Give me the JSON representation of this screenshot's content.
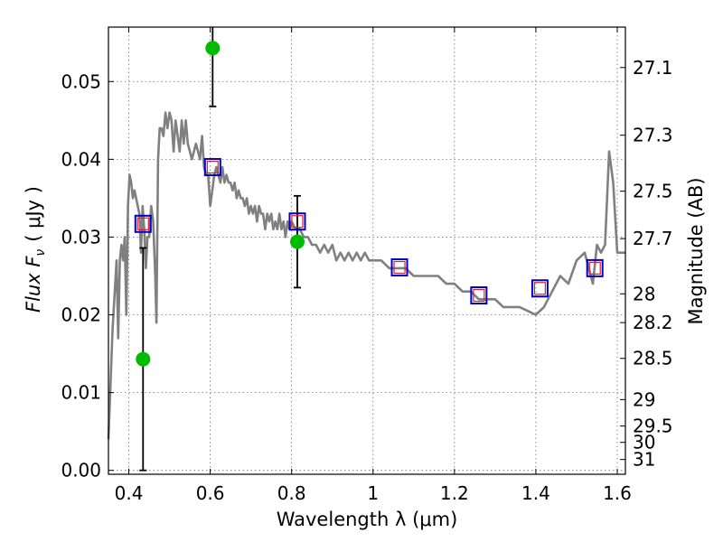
{
  "chart_data": {
    "type": "scatter",
    "xlabel": "Wavelength  λ (μm)",
    "ylabel": "Flux  F",
    "ylabel_sub": "ν",
    "ylabel_unit": "( μJy )",
    "y2label": "Magnitude (AB)",
    "xlim": [
      0.35,
      1.62
    ],
    "ylim": [
      -0.0005,
      0.057
    ],
    "grid": true,
    "x_ticks": [
      0.4,
      0.6,
      0.8,
      1.0,
      1.2,
      1.4,
      1.6
    ],
    "x_tick_labels": [
      "0.4",
      "0.6",
      "0.8",
      "1",
      "1.2",
      "1.4",
      "1.6"
    ],
    "y_ticks": [
      0.0,
      0.01,
      0.02,
      0.03,
      0.04,
      0.05
    ],
    "y_tick_labels": [
      "0.00",
      "0.01",
      "0.02",
      "0.03",
      "0.04",
      "0.05"
    ],
    "mag_ticks": [
      {
        "label": "27.1",
        "flux": 0.0518
      },
      {
        "label": "27.3",
        "flux": 0.0431
      },
      {
        "label": "27.5",
        "flux": 0.0359
      },
      {
        "label": "27.7",
        "flux": 0.0298
      },
      {
        "label": "28",
        "flux": 0.0227
      },
      {
        "label": "28.2",
        "flux": 0.019
      },
      {
        "label": "28.5",
        "flux": 0.0144
      },
      {
        "label": "29",
        "flux": 0.0091
      },
      {
        "label": "29.5",
        "flux": 0.0057
      },
      {
        "label": "30",
        "flux": 0.0036
      },
      {
        "label": "31",
        "flux": 0.0014
      }
    ],
    "colors": {
      "model": "#808080",
      "observed": "#00bb00",
      "synthetic": "#0000cc",
      "synthetic_inner": "#dd2222",
      "errorbar": "#000000"
    },
    "model_spectrum": {
      "x": [
        0.35,
        0.36,
        0.37,
        0.374,
        0.378,
        0.382,
        0.386,
        0.39,
        0.394,
        0.398,
        0.402,
        0.406,
        0.41,
        0.414,
        0.418,
        0.422,
        0.426,
        0.43,
        0.434,
        0.438,
        0.442,
        0.446,
        0.45,
        0.455,
        0.46,
        0.465,
        0.468,
        0.472,
        0.476,
        0.48,
        0.485,
        0.49,
        0.495,
        0.5,
        0.505,
        0.51,
        0.515,
        0.52,
        0.525,
        0.53,
        0.535,
        0.54,
        0.545,
        0.55,
        0.555,
        0.56,
        0.565,
        0.57,
        0.575,
        0.58,
        0.585,
        0.59,
        0.595,
        0.6,
        0.605,
        0.61,
        0.615,
        0.62,
        0.625,
        0.63,
        0.635,
        0.64,
        0.645,
        0.65,
        0.655,
        0.66,
        0.665,
        0.67,
        0.675,
        0.68,
        0.685,
        0.69,
        0.695,
        0.7,
        0.705,
        0.71,
        0.715,
        0.72,
        0.725,
        0.73,
        0.735,
        0.74,
        0.745,
        0.75,
        0.755,
        0.76,
        0.765,
        0.77,
        0.775,
        0.78,
        0.785,
        0.79,
        0.795,
        0.8,
        0.81,
        0.82,
        0.83,
        0.84,
        0.85,
        0.86,
        0.87,
        0.88,
        0.89,
        0.9,
        0.91,
        0.92,
        0.93,
        0.94,
        0.95,
        0.96,
        0.97,
        0.98,
        0.99,
        1.0,
        1.02,
        1.04,
        1.06,
        1.08,
        1.1,
        1.12,
        1.14,
        1.16,
        1.18,
        1.2,
        1.22,
        1.24,
        1.26,
        1.28,
        1.3,
        1.32,
        1.34,
        1.36,
        1.38,
        1.4,
        1.42,
        1.44,
        1.46,
        1.48,
        1.5,
        1.52,
        1.54,
        1.55,
        1.56,
        1.57,
        1.58,
        1.59,
        1.6,
        1.61,
        1.62
      ],
      "y": [
        0.004,
        0.018,
        0.027,
        0.017,
        0.027,
        0.029,
        0.027,
        0.03,
        0.02,
        0.034,
        0.038,
        0.037,
        0.035,
        0.036,
        0.035,
        0.034,
        0.033,
        0.028,
        0.034,
        0.031,
        0.026,
        0.03,
        0.03,
        0.034,
        0.032,
        0.025,
        0.019,
        0.04,
        0.044,
        0.044,
        0.043,
        0.046,
        0.044,
        0.046,
        0.045,
        0.041,
        0.045,
        0.043,
        0.041,
        0.045,
        0.042,
        0.045,
        0.042,
        0.041,
        0.04,
        0.041,
        0.042,
        0.041,
        0.04,
        0.043,
        0.039,
        0.038,
        0.038,
        0.034,
        0.036,
        0.038,
        0.039,
        0.038,
        0.037,
        0.039,
        0.037,
        0.038,
        0.037,
        0.037,
        0.036,
        0.037,
        0.035,
        0.036,
        0.035,
        0.035,
        0.034,
        0.035,
        0.033,
        0.034,
        0.033,
        0.034,
        0.032,
        0.034,
        0.033,
        0.033,
        0.031,
        0.033,
        0.032,
        0.033,
        0.031,
        0.032,
        0.031,
        0.033,
        0.031,
        0.032,
        0.03,
        0.032,
        0.031,
        0.032,
        0.031,
        0.031,
        0.03,
        0.03,
        0.029,
        0.029,
        0.028,
        0.029,
        0.028,
        0.029,
        0.027,
        0.028,
        0.027,
        0.028,
        0.027,
        0.028,
        0.027,
        0.028,
        0.027,
        0.027,
        0.027,
        0.026,
        0.026,
        0.026,
        0.025,
        0.025,
        0.025,
        0.025,
        0.024,
        0.024,
        0.023,
        0.023,
        0.022,
        0.022,
        0.022,
        0.021,
        0.021,
        0.021,
        0.0205,
        0.02,
        0.021,
        0.023,
        0.025,
        0.024,
        0.027,
        0.028,
        0.024,
        0.029,
        0.028,
        0.029,
        0.041,
        0.037,
        0.028,
        0.028,
        0.028
      ]
    },
    "observed": [
      {
        "x": 0.435,
        "y": 0.0143,
        "err": 0.0143
      },
      {
        "x": 0.606,
        "y": 0.0543,
        "err": 0.0075
      },
      {
        "x": 0.814,
        "y": 0.0294,
        "err": 0.0059
      }
    ],
    "synthetic": [
      {
        "x": 0.435,
        "y": 0.0317
      },
      {
        "x": 0.606,
        "y": 0.039
      },
      {
        "x": 0.814,
        "y": 0.032
      },
      {
        "x": 1.065,
        "y": 0.0261
      },
      {
        "x": 1.26,
        "y": 0.0225
      },
      {
        "x": 1.41,
        "y": 0.0234
      },
      {
        "x": 1.545,
        "y": 0.026
      }
    ]
  }
}
